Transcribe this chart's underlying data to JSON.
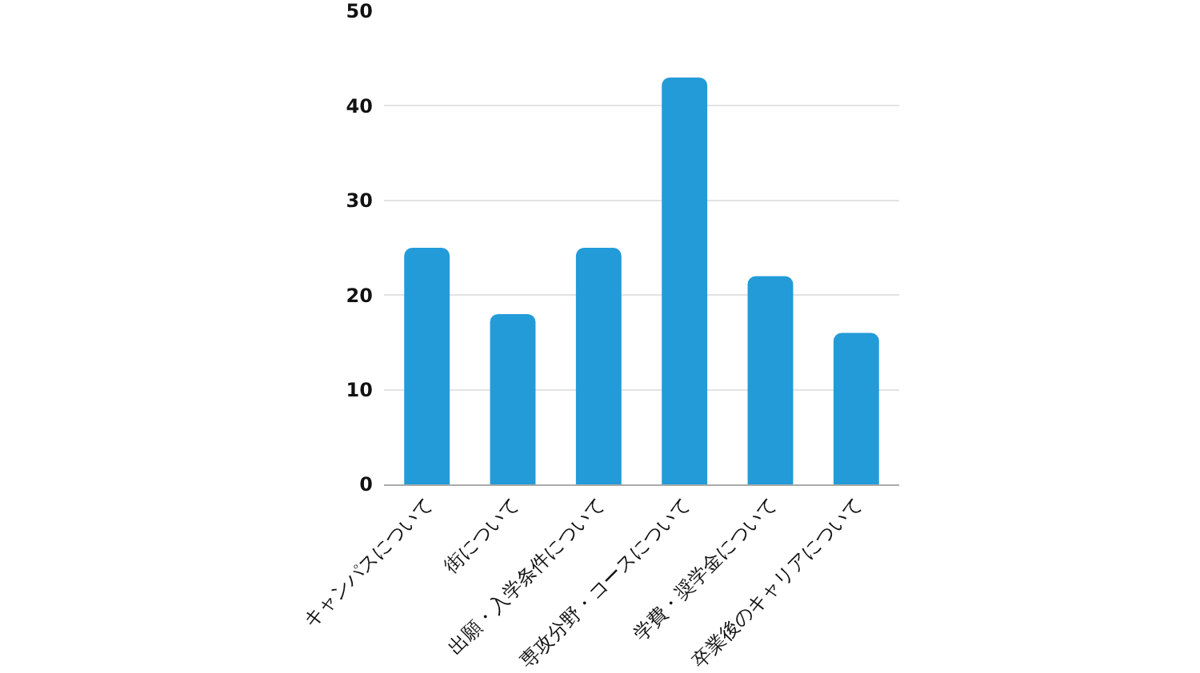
{
  "chart_data": {
    "type": "bar",
    "categories": [
      "キャンパスについて",
      "街について",
      "出願・入学条件について",
      "専攻分野・コースについて",
      "学費・奨学金について",
      "卒業後のキャリアについて"
    ],
    "values": [
      25,
      18,
      25,
      43,
      22,
      16
    ],
    "color": "#239bd8",
    "ylim": [
      0,
      50
    ],
    "yticks": [
      0,
      10,
      20,
      30,
      40,
      50
    ],
    "grid": "y"
  }
}
